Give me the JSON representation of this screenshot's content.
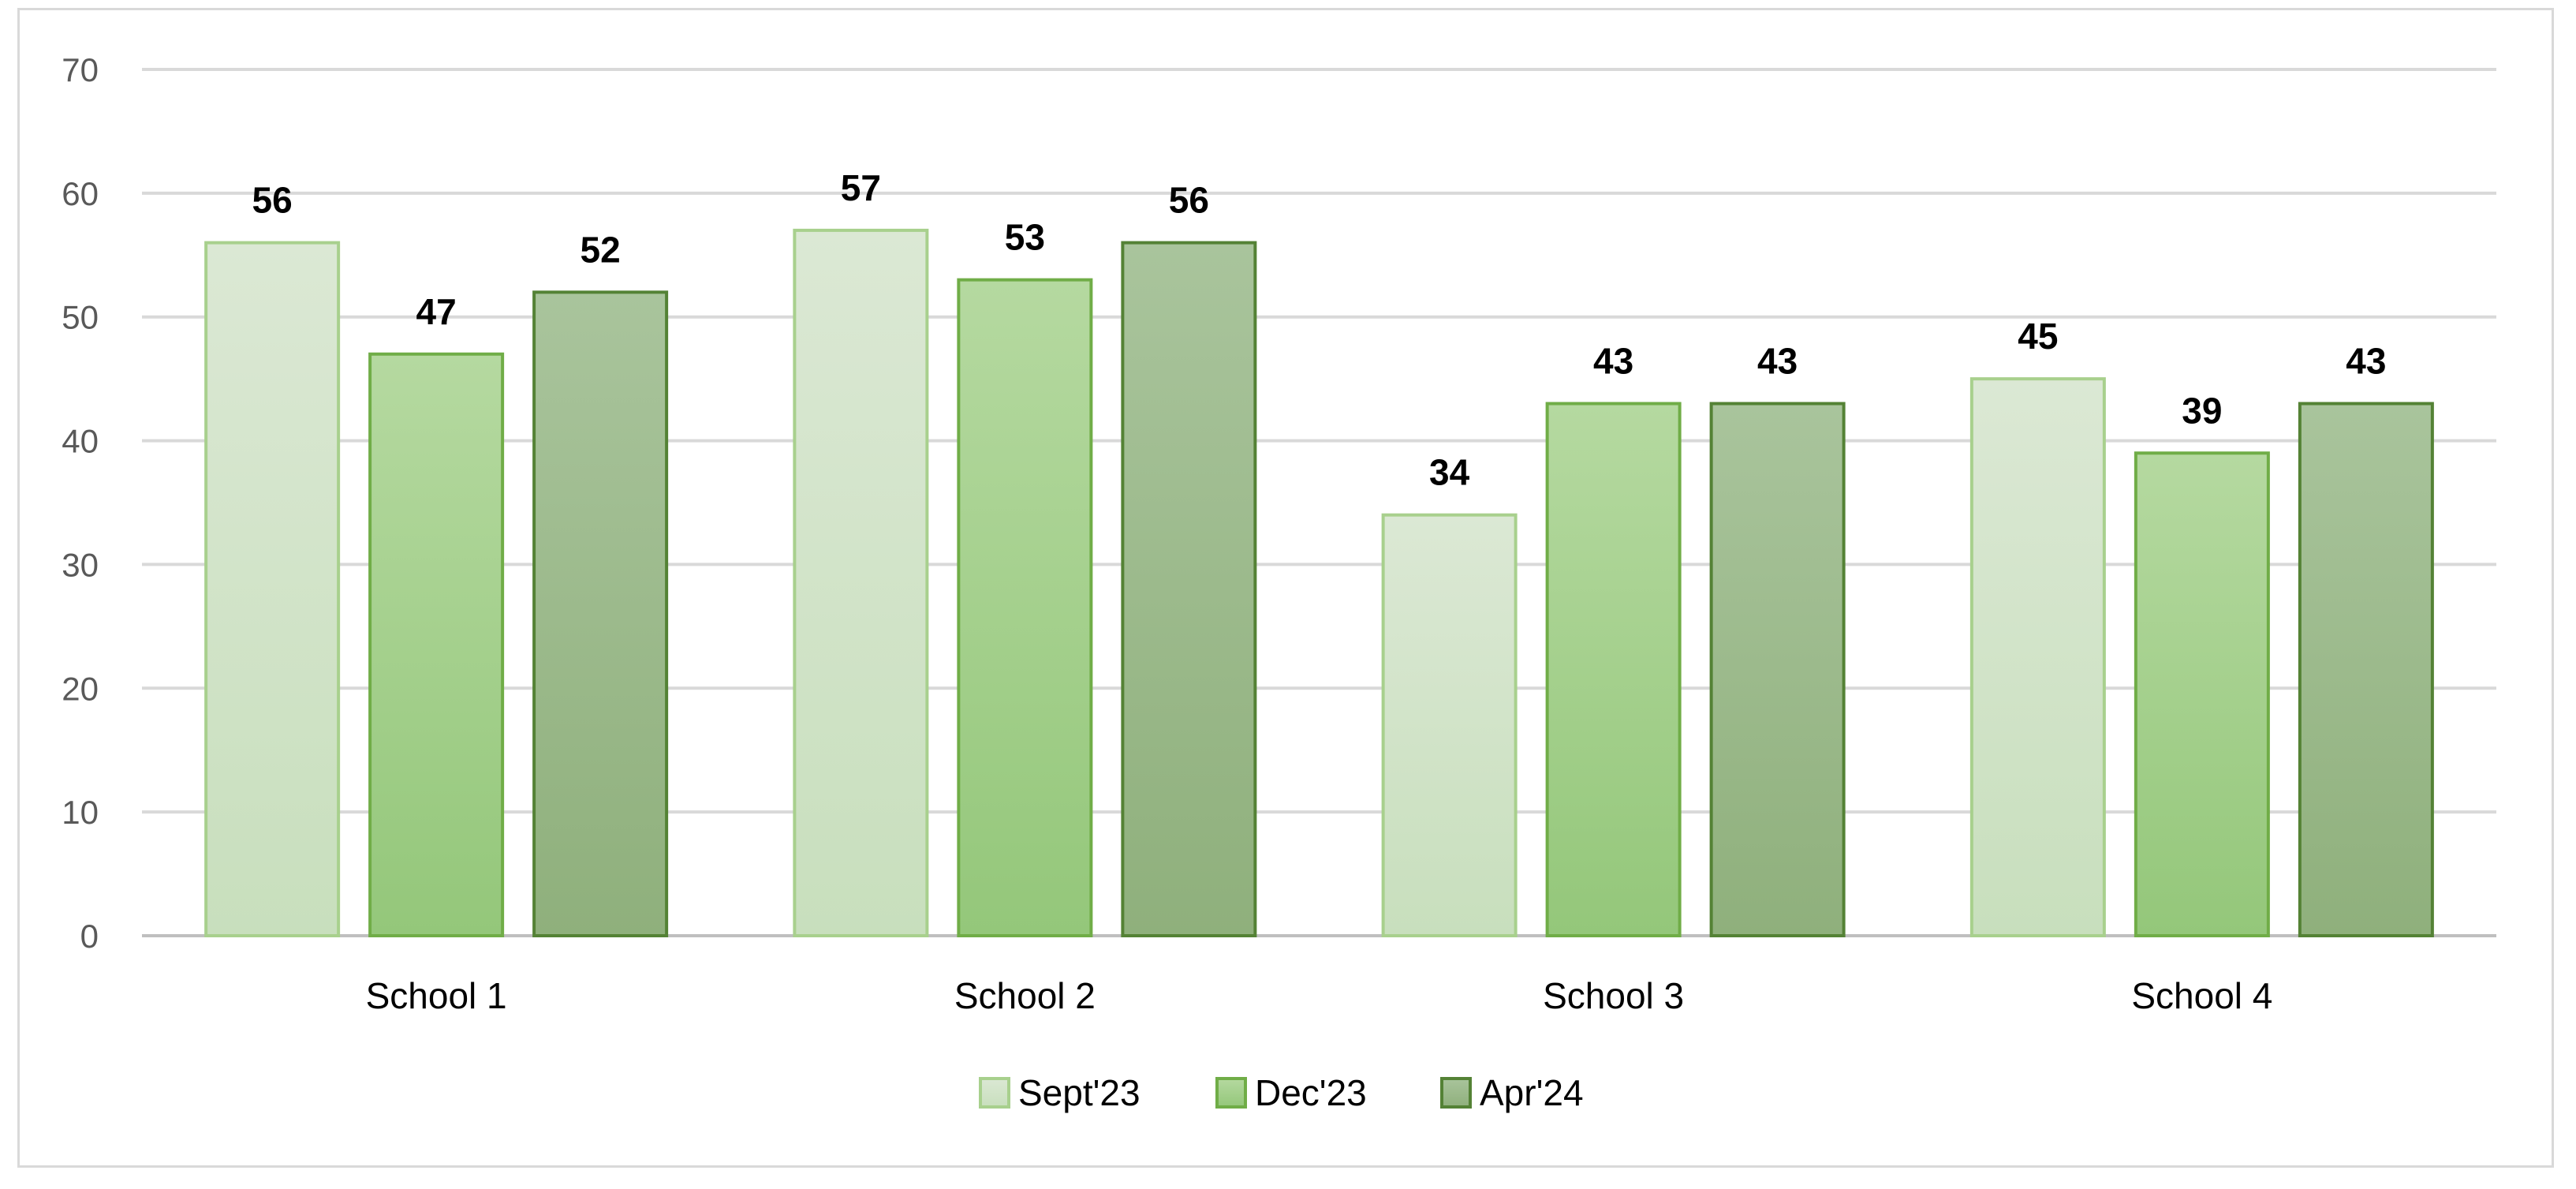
{
  "chart_data": {
    "type": "bar",
    "categories": [
      "School 1",
      "School 2",
      "School 3",
      "School 4"
    ],
    "series": [
      {
        "name": "Sept'23",
        "values": [
          56,
          57,
          34,
          45
        ],
        "data_labels": [
          "56",
          "57",
          "34",
          "45"
        ],
        "color_top": "#dbe8d4",
        "color_bottom": "#c8dfbd",
        "stroke": "#a8d08d"
      },
      {
        "name": "Dec'23",
        "values": [
          47,
          53,
          43,
          39
        ],
        "data_labels": [
          "47",
          "53",
          "43",
          "39"
        ],
        "color_top": "#b5d9a0",
        "color_bottom": "#94c77a",
        "stroke": "#70ad47"
      },
      {
        "name": "Apr'24",
        "values": [
          52,
          56,
          43,
          43
        ],
        "data_labels": [
          "52",
          "56",
          "43",
          "43"
        ],
        "color_top": "#a9c49c",
        "color_bottom": "#8fb07c",
        "stroke": "#548235"
      }
    ],
    "y_ticks": [
      "0",
      "10",
      "20",
      "30",
      "40",
      "50",
      "60",
      "70"
    ],
    "ylim": [
      0,
      70
    ],
    "grid": true,
    "legend_position": "bottom",
    "title": "",
    "xlabel": "",
    "ylabel": ""
  }
}
